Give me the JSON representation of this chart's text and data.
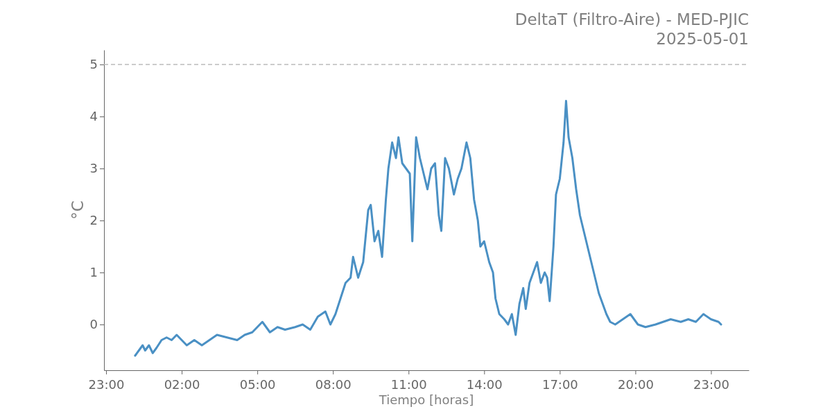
{
  "chart_data": {
    "type": "line",
    "title": "DeltaT (Filtro-Aire) - MED-PJIC",
    "subtitle": "2025-05-01",
    "xlabel": "Tiempo [horas]",
    "ylabel": "°C",
    "xlim": [
      "2025-04-30T22:55",
      "2025-05-02T00:30"
    ],
    "xticks": [
      {
        "value": "2025-04-30T23:00",
        "label": "23:00"
      },
      {
        "value": "2025-05-01T02:00",
        "label": "02:00"
      },
      {
        "value": "2025-05-01T05:00",
        "label": "05:00"
      },
      {
        "value": "2025-05-01T08:00",
        "label": "08:00"
      },
      {
        "value": "2025-05-01T11:00",
        "label": "11:00"
      },
      {
        "value": "2025-05-01T14:00",
        "label": "14:00"
      },
      {
        "value": "2025-05-01T17:00",
        "label": "17:00"
      },
      {
        "value": "2025-05-01T20:00",
        "label": "20:00"
      },
      {
        "value": "2025-05-01T23:00",
        "label": "23:00"
      }
    ],
    "ylim": [
      -0.88,
      5.28
    ],
    "yticks": [
      0,
      1,
      2,
      3,
      4,
      5
    ],
    "grid": false,
    "line_style": "solid",
    "ref_lines": [
      {
        "axis": "y",
        "value": 5,
        "color": "#bbbbbb",
        "line_style": "dashed"
      }
    ],
    "x": [
      "2025-05-01T00:09",
      "2025-05-01T00:18",
      "2025-05-01T00:27",
      "2025-05-01T00:33",
      "2025-05-01T00:42",
      "2025-05-01T00:51",
      "2025-05-01T01:00",
      "2025-05-01T01:12",
      "2025-05-01T01:24",
      "2025-05-01T01:36",
      "2025-05-01T01:48",
      "2025-05-01T02:00",
      "2025-05-01T02:12",
      "2025-05-01T02:30",
      "2025-05-01T02:48",
      "2025-05-01T03:06",
      "2025-05-01T03:24",
      "2025-05-01T03:48",
      "2025-05-01T04:12",
      "2025-05-01T04:30",
      "2025-05-01T04:48",
      "2025-05-01T05:00",
      "2025-05-01T05:12",
      "2025-05-01T05:30",
      "2025-05-01T05:48",
      "2025-05-01T06:06",
      "2025-05-01T06:30",
      "2025-05-01T06:48",
      "2025-05-01T07:06",
      "2025-05-01T07:24",
      "2025-05-01T07:42",
      "2025-05-01T07:54",
      "2025-05-01T08:06",
      "2025-05-01T08:18",
      "2025-05-01T08:30",
      "2025-05-01T08:42",
      "2025-05-01T08:48",
      "2025-05-01T09:00",
      "2025-05-01T09:12",
      "2025-05-01T09:24",
      "2025-05-01T09:30",
      "2025-05-01T09:39",
      "2025-05-01T09:48",
      "2025-05-01T09:57",
      "2025-05-01T10:06",
      "2025-05-01T10:12",
      "2025-05-01T10:21",
      "2025-05-01T10:30",
      "2025-05-01T10:36",
      "2025-05-01T10:45",
      "2025-05-01T10:54",
      "2025-05-01T11:03",
      "2025-05-01T11:09",
      "2025-05-01T11:18",
      "2025-05-01T11:27",
      "2025-05-01T11:36",
      "2025-05-01T11:45",
      "2025-05-01T11:54",
      "2025-05-01T12:03",
      "2025-05-01T12:12",
      "2025-05-01T12:18",
      "2025-05-01T12:27",
      "2025-05-01T12:36",
      "2025-05-01T12:48",
      "2025-05-01T12:57",
      "2025-05-01T13:06",
      "2025-05-01T13:18",
      "2025-05-01T13:27",
      "2025-05-01T13:36",
      "2025-05-01T13:45",
      "2025-05-01T13:51",
      "2025-05-01T14:00",
      "2025-05-01T14:12",
      "2025-05-01T14:21",
      "2025-05-01T14:27",
      "2025-05-01T14:36",
      "2025-05-01T14:48",
      "2025-05-01T14:57",
      "2025-05-01T15:06",
      "2025-05-01T15:15",
      "2025-05-01T15:24",
      "2025-05-01T15:33",
      "2025-05-01T15:39",
      "2025-05-01T15:48",
      "2025-05-01T15:57",
      "2025-05-01T16:06",
      "2025-05-01T16:15",
      "2025-05-01T16:24",
      "2025-05-01T16:30",
      "2025-05-01T16:36",
      "2025-05-01T16:45",
      "2025-05-01T16:51",
      "2025-05-01T17:00",
      "2025-05-01T17:09",
      "2025-05-01T17:15",
      "2025-05-01T17:21",
      "2025-05-01T17:30",
      "2025-05-01T17:39",
      "2025-05-01T17:48",
      "2025-05-01T17:57",
      "2025-05-01T18:06",
      "2025-05-01T18:15",
      "2025-05-01T18:24",
      "2025-05-01T18:33",
      "2025-05-01T18:42",
      "2025-05-01T18:51",
      "2025-05-01T19:00",
      "2025-05-01T19:12",
      "2025-05-01T19:30",
      "2025-05-01T19:48",
      "2025-05-01T20:06",
      "2025-05-01T20:24",
      "2025-05-01T20:48",
      "2025-05-01T21:06",
      "2025-05-01T21:24",
      "2025-05-01T21:48",
      "2025-05-01T22:06",
      "2025-05-01T22:24",
      "2025-05-01T22:42",
      "2025-05-01T23:00",
      "2025-05-01T23:18",
      "2025-05-01T23:24"
    ],
    "series": [
      {
        "color": "#4a90c4",
        "values": [
          -0.6,
          -0.5,
          -0.4,
          -0.5,
          -0.4,
          -0.55,
          -0.45,
          -0.3,
          -0.25,
          -0.3,
          -0.2,
          -0.3,
          -0.4,
          -0.3,
          -0.4,
          -0.3,
          -0.2,
          -0.25,
          -0.3,
          -0.2,
          -0.15,
          -0.05,
          0.05,
          -0.15,
          -0.05,
          -0.1,
          -0.05,
          0.0,
          -0.1,
          0.15,
          0.25,
          0.0,
          0.2,
          0.5,
          0.8,
          0.9,
          1.3,
          0.9,
          1.2,
          2.2,
          2.3,
          1.6,
          1.8,
          1.3,
          2.4,
          3.0,
          3.5,
          3.2,
          3.6,
          3.1,
          3.0,
          2.9,
          1.6,
          3.6,
          3.2,
          2.9,
          2.6,
          3.0,
          3.1,
          2.1,
          1.8,
          3.2,
          3.0,
          2.5,
          2.8,
          3.0,
          3.5,
          3.2,
          2.4,
          2.0,
          1.5,
          1.6,
          1.2,
          1.0,
          0.5,
          0.2,
          0.1,
          0.0,
          0.2,
          -0.2,
          0.4,
          0.7,
          0.3,
          0.8,
          1.0,
          1.2,
          0.8,
          1.0,
          0.9,
          0.45,
          1.5,
          2.5,
          2.8,
          3.5,
          4.3,
          3.6,
          3.2,
          2.6,
          2.1,
          1.8,
          1.5,
          1.2,
          0.9,
          0.6,
          0.4,
          0.2,
          0.05,
          0.0,
          0.1,
          0.2,
          0.0,
          -0.05,
          0.0,
          0.05,
          0.1,
          0.05,
          0.1,
          0.05,
          0.2,
          0.1,
          0.05,
          0.0
        ]
      }
    ]
  }
}
